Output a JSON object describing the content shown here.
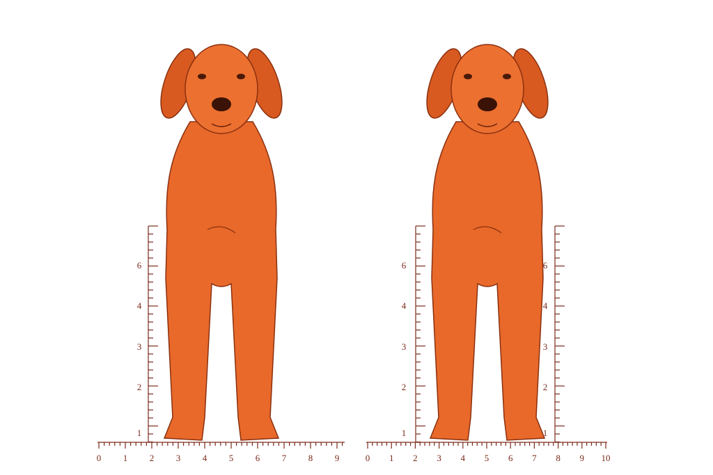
{
  "panels": [
    {
      "vertical_rulers": [
        {
          "labels": [
            6,
            4,
            3,
            2,
            1
          ]
        }
      ],
      "horizontal_ruler": {
        "labels": [
          0,
          1,
          2,
          3,
          4,
          5,
          6,
          7,
          8,
          9
        ]
      }
    },
    {
      "vertical_rulers": [
        {
          "labels": [
            6,
            4,
            3,
            2,
            1
          ]
        },
        {
          "labels": [
            6,
            4,
            3,
            2,
            1
          ]
        }
      ],
      "horizontal_ruler": {
        "labels": [
          0,
          1,
          2,
          3,
          4,
          5,
          6,
          7,
          8,
          9,
          10
        ]
      }
    }
  ]
}
